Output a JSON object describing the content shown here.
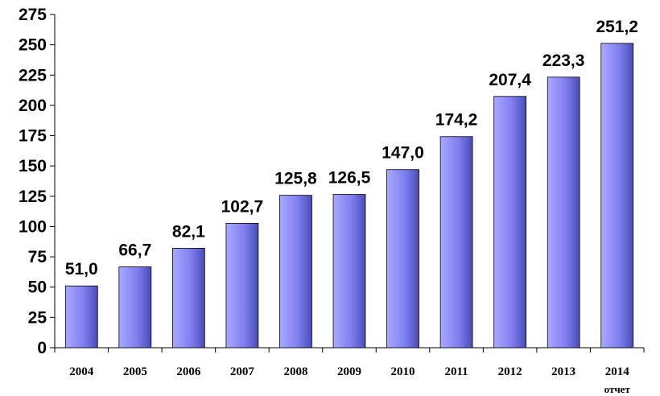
{
  "chart_data": {
    "type": "bar",
    "categories": [
      "2004",
      "2005",
      "2006",
      "2007",
      "2008",
      "2009",
      "2010",
      "2011",
      "2012",
      "2013",
      "2014"
    ],
    "values": [
      51.0,
      66.7,
      82.1,
      102.7,
      125.8,
      126.5,
      147.0,
      174.2,
      207.4,
      223.3,
      251.2
    ],
    "data_labels": [
      "51,0",
      "66,7",
      "82,1",
      "102,7",
      "125,8",
      "126,5",
      "147,0",
      "174,2",
      "207,4",
      "223,3",
      "251,2"
    ],
    "y_ticks": [
      "0",
      "25",
      "50",
      "75",
      "100",
      "125",
      "150",
      "175",
      "200",
      "225",
      "250",
      "275"
    ],
    "ylim": [
      0,
      275
    ],
    "grid": false,
    "legend": "none",
    "category_note": "отчет",
    "category_note_index": 10,
    "colors": {
      "bar_light": "#a9a9ff",
      "bar_mid": "#8080f0",
      "bar_dark": "#4b4bb8",
      "axis": "#000000"
    }
  }
}
